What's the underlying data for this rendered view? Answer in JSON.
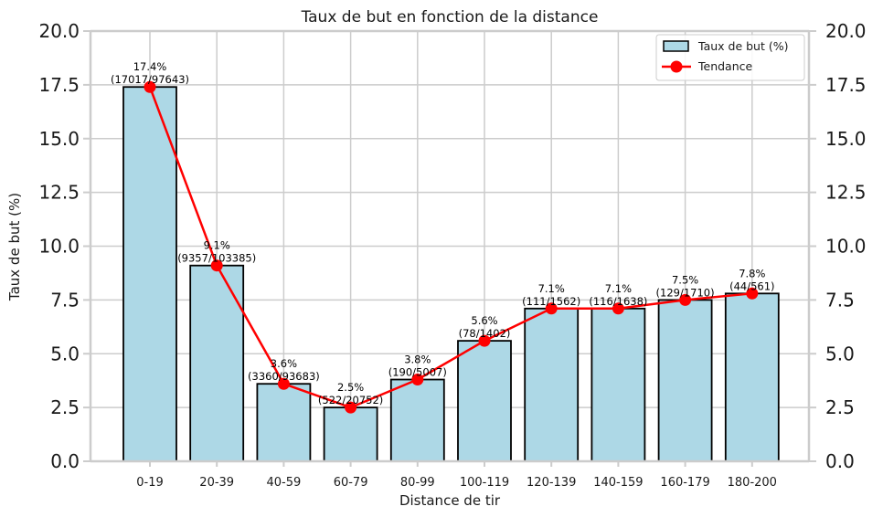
{
  "chart_data": {
    "type": "bar",
    "title": "Taux de but en fonction de la distance",
    "xlabel": "Distance de tir",
    "ylabel": "Taux de but (%)",
    "ylim": [
      0,
      20
    ],
    "yticks": [
      "0.0",
      "2.5",
      "5.0",
      "7.5",
      "10.0",
      "12.5",
      "15.0",
      "17.5",
      "20.0"
    ],
    "ytick_values": [
      0,
      2.5,
      5,
      7.5,
      10,
      12.5,
      15,
      17.5,
      20
    ],
    "grid": true,
    "legend_position": "top-right",
    "categories": [
      "0-19",
      "20-39",
      "40-59",
      "60-79",
      "80-99",
      "100-119",
      "120-139",
      "140-159",
      "160-179",
      "180-200"
    ],
    "series": [
      {
        "name": "Taux de but (%)",
        "type": "bar",
        "color": "#add8e6",
        "edge_color": "#000000",
        "values": [
          17.4,
          9.1,
          3.6,
          2.5,
          3.8,
          5.6,
          7.1,
          7.1,
          7.5,
          7.8
        ]
      },
      {
        "name": "Tendance",
        "type": "line",
        "color": "#ff0000",
        "values": [
          17.4,
          9.1,
          3.6,
          2.5,
          3.8,
          5.6,
          7.1,
          7.1,
          7.5,
          7.8
        ]
      }
    ],
    "bar_labels": [
      {
        "pct": "17.4%",
        "counts": "(17017/97643)"
      },
      {
        "pct": "9.1%",
        "counts": "(9357/103385)"
      },
      {
        "pct": "3.6%",
        "counts": "(3360/93683)"
      },
      {
        "pct": "2.5%",
        "counts": "(522/20752)"
      },
      {
        "pct": "3.8%",
        "counts": "(190/5007)"
      },
      {
        "pct": "5.6%",
        "counts": "(78/1402)"
      },
      {
        "pct": "7.1%",
        "counts": "(111/1562)"
      },
      {
        "pct": "7.1%",
        "counts": "(116/1638)"
      },
      {
        "pct": "7.5%",
        "counts": "(129/1710)"
      },
      {
        "pct": "7.8%",
        "counts": "(44/561)"
      }
    ]
  }
}
